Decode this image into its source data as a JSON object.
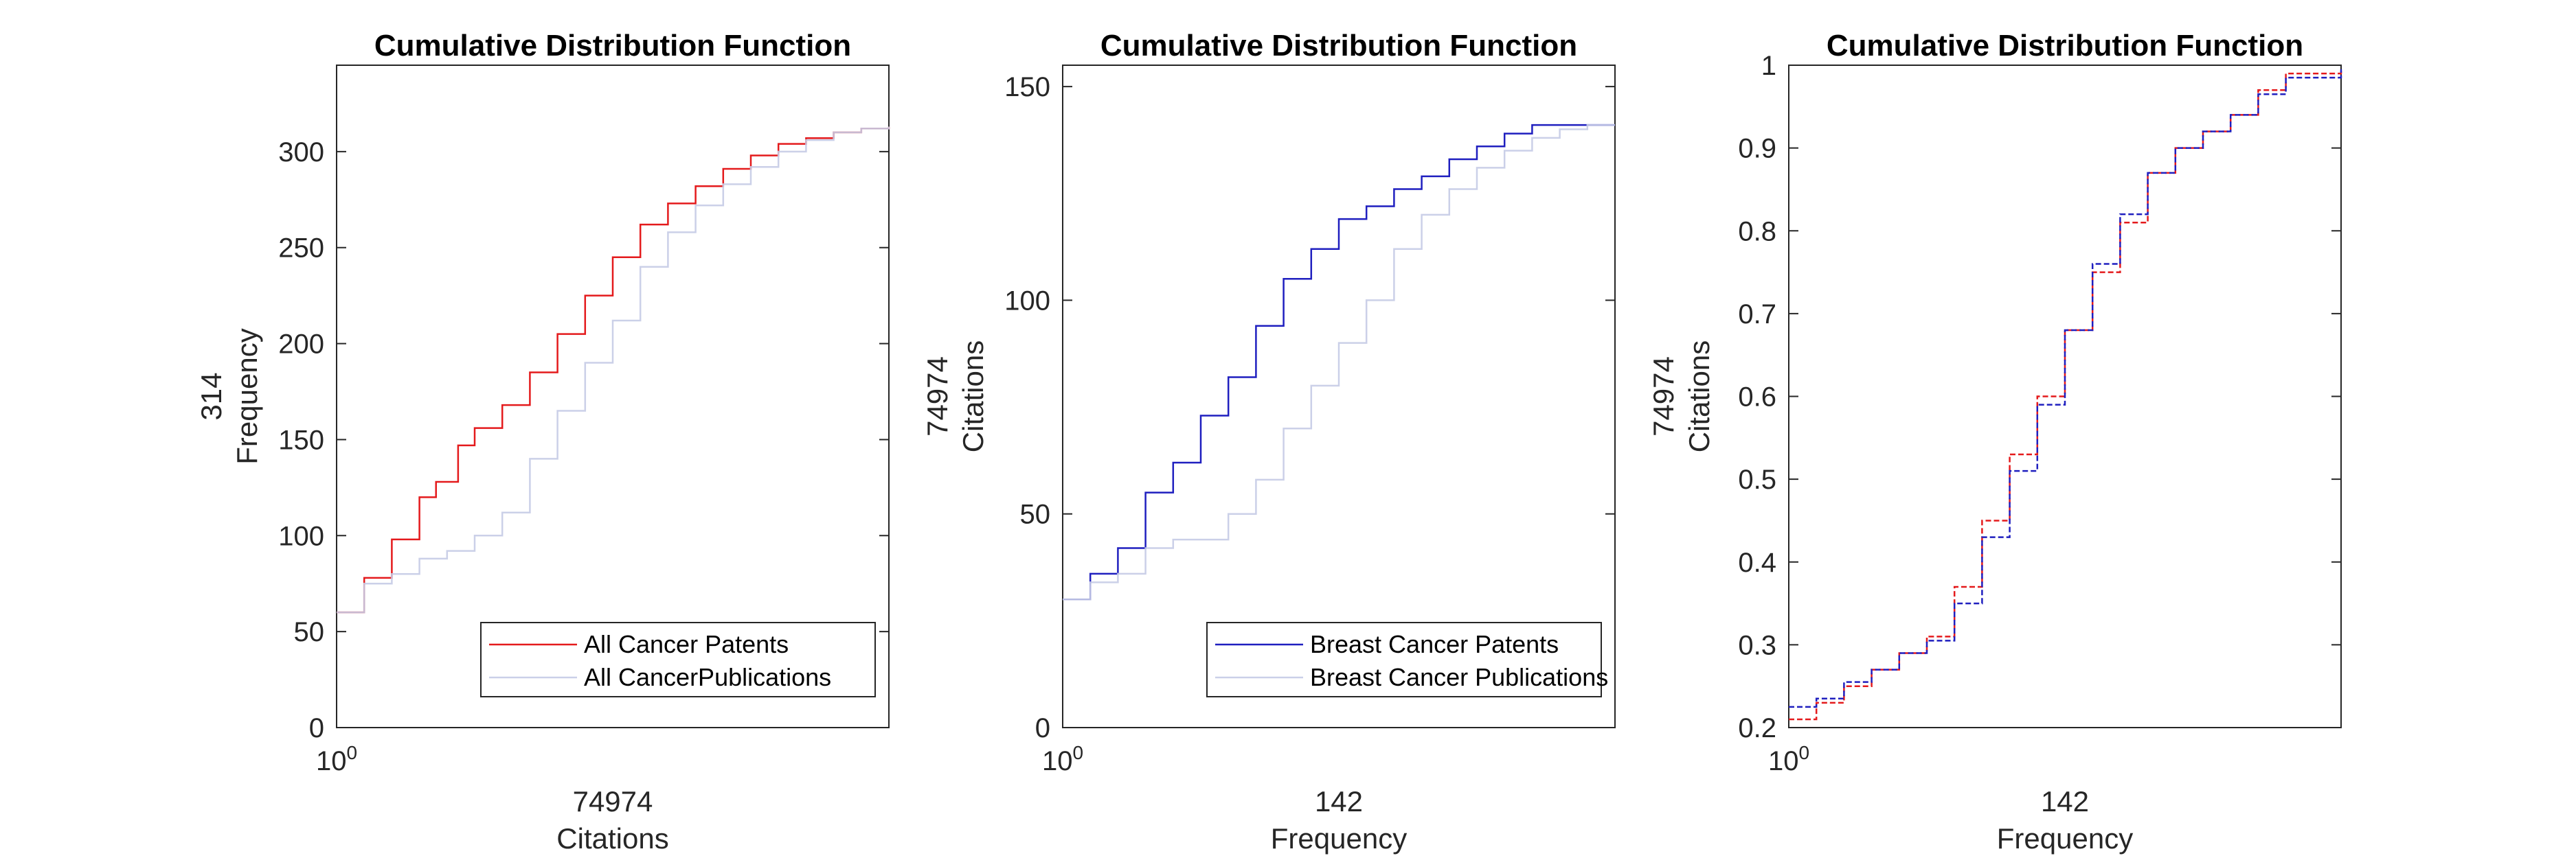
{
  "chart_data": [
    {
      "type": "line",
      "title": "Cumulative Distribution Function",
      "xlabel": [
        "74974",
        "Citations"
      ],
      "ylabel": [
        "314",
        "Frequency"
      ],
      "xscale": "log",
      "x_tick_labels": [
        {
          "base": "10",
          "exp": "0"
        }
      ],
      "ylim": [
        0,
        345
      ],
      "yticks": [
        0,
        50,
        100,
        150,
        200,
        250,
        300
      ],
      "legend": {
        "placement": "bottom-right"
      },
      "series": [
        {
          "name": "All Cancer Patents",
          "color": "#e41a1c",
          "style": "solid",
          "opacity": 1,
          "points": [
            [
              0,
              60
            ],
            [
              0.05,
              78
            ],
            [
              0.1,
              98
            ],
            [
              0.15,
              120
            ],
            [
              0.18,
              128
            ],
            [
              0.22,
              147
            ],
            [
              0.25,
              156
            ],
            [
              0.3,
              168
            ],
            [
              0.35,
              185
            ],
            [
              0.4,
              205
            ],
            [
              0.45,
              225
            ],
            [
              0.5,
              245
            ],
            [
              0.55,
              262
            ],
            [
              0.6,
              273
            ],
            [
              0.65,
              282
            ],
            [
              0.7,
              291
            ],
            [
              0.75,
              298
            ],
            [
              0.8,
              304
            ],
            [
              0.85,
              307
            ],
            [
              0.9,
              310
            ],
            [
              0.95,
              312
            ],
            [
              1,
              313
            ]
          ]
        },
        {
          "name": "All CancerPublications",
          "color": "#c5cbe6",
          "style": "solid",
          "opacity": 0.9,
          "points": [
            [
              0,
              60
            ],
            [
              0.05,
              75
            ],
            [
              0.1,
              80
            ],
            [
              0.15,
              88
            ],
            [
              0.2,
              92
            ],
            [
              0.25,
              100
            ],
            [
              0.3,
              112
            ],
            [
              0.35,
              140
            ],
            [
              0.4,
              165
            ],
            [
              0.45,
              190
            ],
            [
              0.5,
              212
            ],
            [
              0.55,
              240
            ],
            [
              0.6,
              258
            ],
            [
              0.65,
              272
            ],
            [
              0.7,
              283
            ],
            [
              0.75,
              292
            ],
            [
              0.8,
              300
            ],
            [
              0.85,
              306
            ],
            [
              0.9,
              310
            ],
            [
              0.95,
              312
            ],
            [
              1,
              313
            ]
          ]
        }
      ]
    },
    {
      "type": "line",
      "title": "Cumulative Distribution Function",
      "xlabel": [
        "142",
        "Frequency"
      ],
      "ylabel": [
        "74974",
        "Citations"
      ],
      "xscale": "log",
      "x_tick_labels": [
        {
          "base": "10",
          "exp": "0"
        }
      ],
      "ylim": [
        0,
        155
      ],
      "yticks": [
        0,
        50,
        100,
        150
      ],
      "legend": {
        "placement": "bottom-right"
      },
      "series": [
        {
          "name": "Breast Cancer Patents",
          "color": "#1f1fbf",
          "style": "solid",
          "opacity": 1,
          "points": [
            [
              0,
              30
            ],
            [
              0.05,
              36
            ],
            [
              0.1,
              42
            ],
            [
              0.15,
              55
            ],
            [
              0.2,
              62
            ],
            [
              0.25,
              73
            ],
            [
              0.3,
              82
            ],
            [
              0.35,
              94
            ],
            [
              0.4,
              105
            ],
            [
              0.45,
              112
            ],
            [
              0.5,
              119
            ],
            [
              0.55,
              122
            ],
            [
              0.6,
              126
            ],
            [
              0.65,
              129
            ],
            [
              0.7,
              133
            ],
            [
              0.75,
              136
            ],
            [
              0.8,
              139
            ],
            [
              0.85,
              141
            ],
            [
              1,
              141
            ]
          ]
        },
        {
          "name": "Breast Cancer Publications",
          "color": "#c5cbe6",
          "style": "solid",
          "opacity": 0.9,
          "points": [
            [
              0,
              30
            ],
            [
              0.05,
              34
            ],
            [
              0.1,
              36
            ],
            [
              0.15,
              42
            ],
            [
              0.2,
              44
            ],
            [
              0.3,
              50
            ],
            [
              0.35,
              58
            ],
            [
              0.4,
              70
            ],
            [
              0.45,
              80
            ],
            [
              0.5,
              90
            ],
            [
              0.55,
              100
            ],
            [
              0.6,
              112
            ],
            [
              0.65,
              120
            ],
            [
              0.7,
              126
            ],
            [
              0.75,
              131
            ],
            [
              0.8,
              135
            ],
            [
              0.85,
              138
            ],
            [
              0.9,
              140
            ],
            [
              0.95,
              141
            ],
            [
              1,
              141
            ]
          ]
        }
      ]
    },
    {
      "type": "line",
      "title": "Cumulative Distribution Function",
      "xlabel": [
        "142",
        "Frequency"
      ],
      "ylabel": [
        "74974",
        "Citations"
      ],
      "xscale": "log",
      "x_tick_labels": [
        {
          "base": "10",
          "exp": "0"
        }
      ],
      "ylim": [
        0.2,
        1
      ],
      "yticks": [
        0.2,
        0.3,
        0.4,
        0.5,
        0.6,
        0.7,
        0.8,
        0.9,
        1
      ],
      "legend": null,
      "series": [
        {
          "color": "#e41a1c",
          "style": "dashed",
          "opacity": 1,
          "points": [
            [
              0,
              0.21
            ],
            [
              0.05,
              0.23
            ],
            [
              0.1,
              0.25
            ],
            [
              0.15,
              0.27
            ],
            [
              0.2,
              0.29
            ],
            [
              0.25,
              0.31
            ],
            [
              0.3,
              0.37
            ],
            [
              0.35,
              0.45
            ],
            [
              0.4,
              0.53
            ],
            [
              0.45,
              0.6
            ],
            [
              0.5,
              0.68
            ],
            [
              0.55,
              0.75
            ],
            [
              0.6,
              0.81
            ],
            [
              0.65,
              0.87
            ],
            [
              0.7,
              0.9
            ],
            [
              0.75,
              0.92
            ],
            [
              0.8,
              0.94
            ],
            [
              0.85,
              0.97
            ],
            [
              0.9,
              0.99
            ],
            [
              1,
              0.995
            ]
          ]
        },
        {
          "color": "#1f1fbf",
          "style": "dashed",
          "opacity": 1,
          "points": [
            [
              0,
              0.225
            ],
            [
              0.05,
              0.235
            ],
            [
              0.1,
              0.255
            ],
            [
              0.15,
              0.27
            ],
            [
              0.2,
              0.29
            ],
            [
              0.25,
              0.305
            ],
            [
              0.3,
              0.35
            ],
            [
              0.35,
              0.43
            ],
            [
              0.4,
              0.51
            ],
            [
              0.45,
              0.59
            ],
            [
              0.5,
              0.68
            ],
            [
              0.55,
              0.76
            ],
            [
              0.6,
              0.82
            ],
            [
              0.65,
              0.87
            ],
            [
              0.7,
              0.9
            ],
            [
              0.75,
              0.92
            ],
            [
              0.8,
              0.94
            ],
            [
              0.85,
              0.965
            ],
            [
              0.9,
              0.985
            ],
            [
              1,
              0.995
            ]
          ]
        }
      ]
    }
  ]
}
